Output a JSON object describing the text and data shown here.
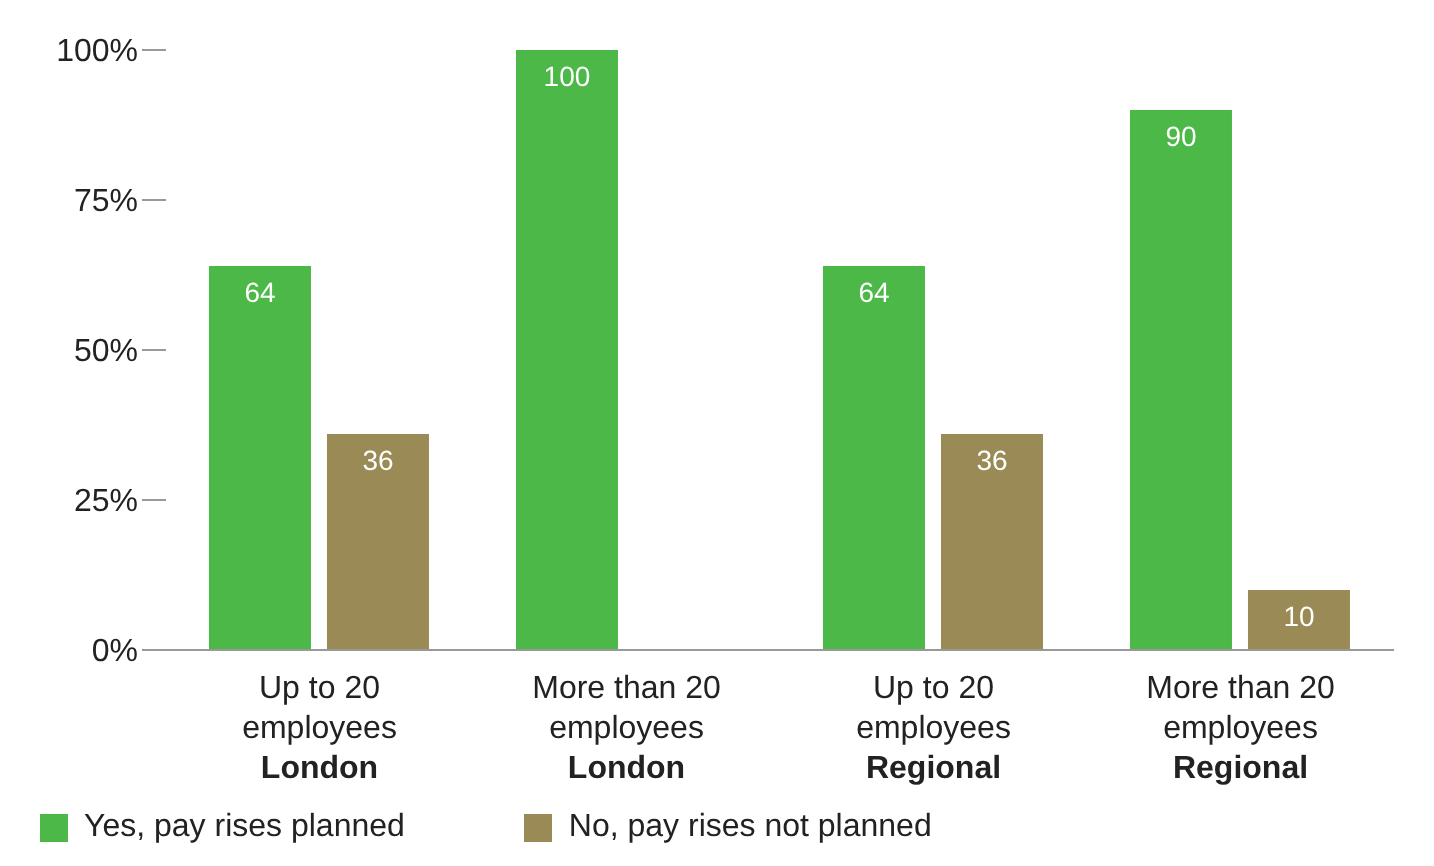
{
  "chart_data": {
    "type": "bar",
    "categories": [
      "Up to 20\nemployees\nLondon",
      "More than 20\nemployees\nLondon",
      "Up to 20\nemployees\nRegional",
      "More than 20\nemployees\nRegional"
    ],
    "series": [
      {
        "name": "Yes, pay rises planned",
        "color": "#4cb848",
        "values": [
          64,
          100,
          64,
          90
        ],
        "value_labels": [
          "64",
          "100",
          "64",
          "90"
        ]
      },
      {
        "name": "No, pay rises not planned",
        "color": "#9a8a55",
        "values": [
          36,
          0,
          36,
          10
        ],
        "value_labels": [
          "36",
          null,
          "36",
          "10"
        ]
      }
    ],
    "ylim": [
      0,
      100
    ],
    "yticks": [
      {
        "value": 0,
        "label": "0%"
      },
      {
        "value": 25,
        "label": "25%"
      },
      {
        "value": 50,
        "label": "50%"
      },
      {
        "value": 75,
        "label": "75%"
      },
      {
        "value": 100,
        "label": "100%"
      }
    ],
    "grid": false,
    "legend": "bottom left"
  }
}
